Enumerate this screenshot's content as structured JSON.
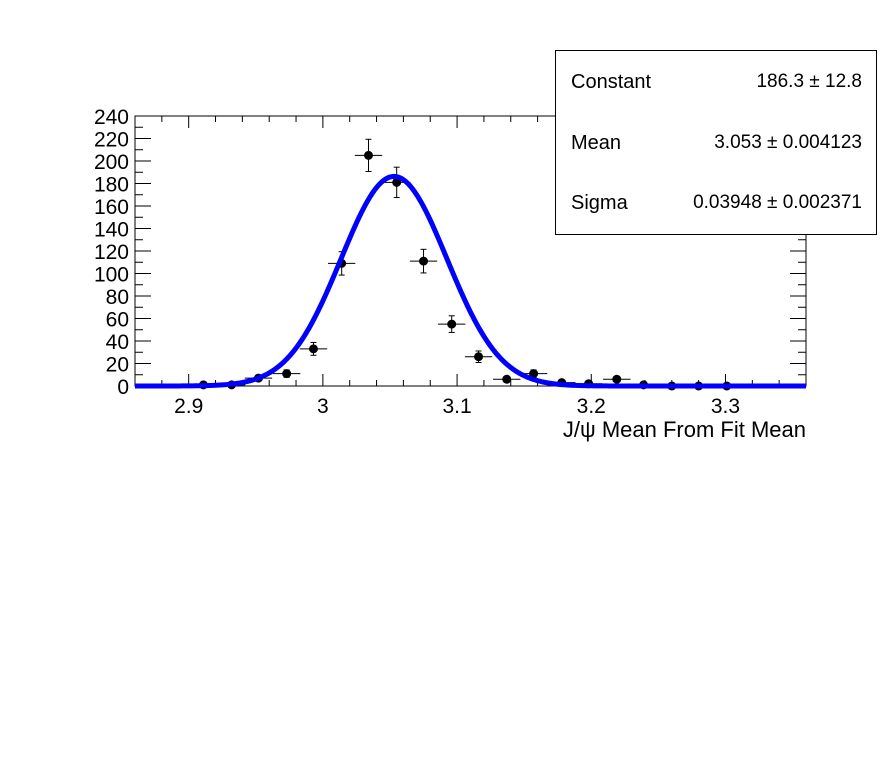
{
  "chart_data": {
    "type": "scatter",
    "xlabel": "J/ψ Mean From Fit Mean",
    "ylabel": "",
    "xlim": [
      2.86,
      3.36
    ],
    "ylim": [
      0,
      240
    ],
    "x_ticks": [
      "2.9",
      "3",
      "3.1",
      "3.2",
      "3.3"
    ],
    "x_tick_values": [
      2.9,
      3.0,
      3.1,
      3.2,
      3.3
    ],
    "y_ticks": [
      "0",
      "20",
      "40",
      "60",
      "80",
      "100",
      "120",
      "140",
      "160",
      "180",
      "200",
      "220",
      "240"
    ],
    "y_tick_values": [
      0,
      20,
      40,
      60,
      80,
      100,
      120,
      140,
      160,
      180,
      200,
      220,
      240
    ],
    "grid": false,
    "bin_half_width": 0.0102,
    "series": [
      {
        "type": "errorbar",
        "color": "#000000",
        "x": [
          2.911,
          2.932,
          2.952,
          2.973,
          2.993,
          3.014,
          3.034,
          3.055,
          3.075,
          3.096,
          3.116,
          3.137,
          3.157,
          3.178,
          3.198,
          3.219,
          3.239,
          3.26,
          3.28,
          3.301
        ],
        "y": [
          1,
          1,
          7,
          11,
          33,
          109,
          205,
          181,
          111,
          55,
          26,
          6,
          11,
          3,
          2,
          6,
          1,
          0,
          0,
          0
        ],
        "yerr": [
          1,
          1,
          2.6,
          3.3,
          5.7,
          10.4,
          14.3,
          13.5,
          10.5,
          7.4,
          5.1,
          2.4,
          3.3,
          1.7,
          1.4,
          2.4,
          1,
          0,
          0,
          0
        ]
      },
      {
        "type": "line",
        "color": "#0000ff",
        "function": "gaussian",
        "constant": 186.3,
        "mean": 3.053,
        "sigma": 0.03948
      }
    ]
  },
  "stats_box": {
    "rows": [
      {
        "name": "Constant",
        "value": "186.3 ±  12.8"
      },
      {
        "name": "Mean",
        "value": "3.053 ± 0.004123"
      },
      {
        "name": "Sigma",
        "value": "0.03948 ± 0.002371"
      }
    ]
  }
}
